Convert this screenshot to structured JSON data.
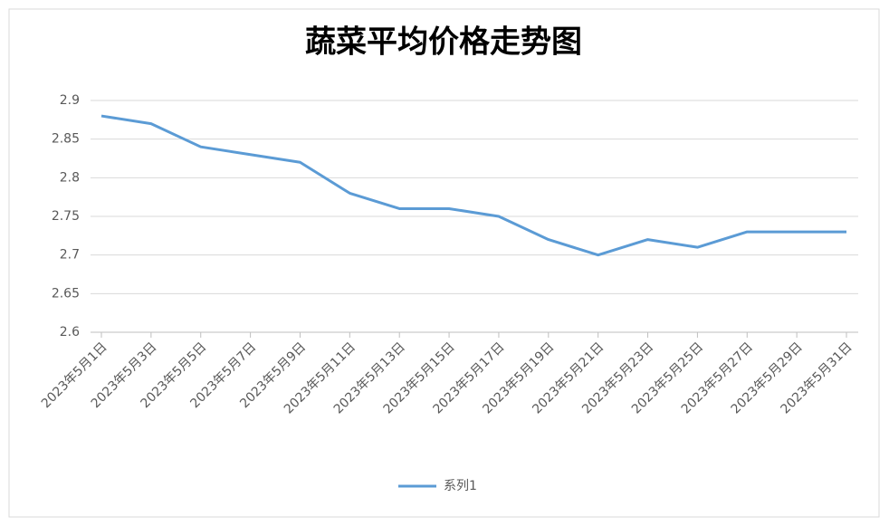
{
  "chart_data": {
    "type": "line",
    "title": "蔬菜平均价格走势图",
    "categories": [
      "2023年5月1日",
      "2023年5月3日",
      "2023年5月5日",
      "2023年5月7日",
      "2023年5月9日",
      "2023年5月11日",
      "2023年5月13日",
      "2023年5月15日",
      "2023年5月17日",
      "2023年5月19日",
      "2023年5月21日",
      "2023年5月23日",
      "2023年5月25日",
      "2023年5月27日",
      "2023年5月29日",
      "2023年5月31日"
    ],
    "series": [
      {
        "name": "系列1",
        "color": "#5b9bd5",
        "values": [
          2.88,
          2.87,
          2.84,
          2.83,
          2.82,
          2.78,
          2.76,
          2.76,
          2.75,
          2.72,
          2.7,
          2.72,
          2.71,
          2.73,
          2.73,
          2.73
        ]
      }
    ],
    "ylim": [
      2.6,
      2.9
    ],
    "yticks": [
      2.9,
      2.85,
      2.8,
      2.75,
      2.7,
      2.65,
      2.6
    ],
    "grid": true,
    "legend": "bottom"
  }
}
